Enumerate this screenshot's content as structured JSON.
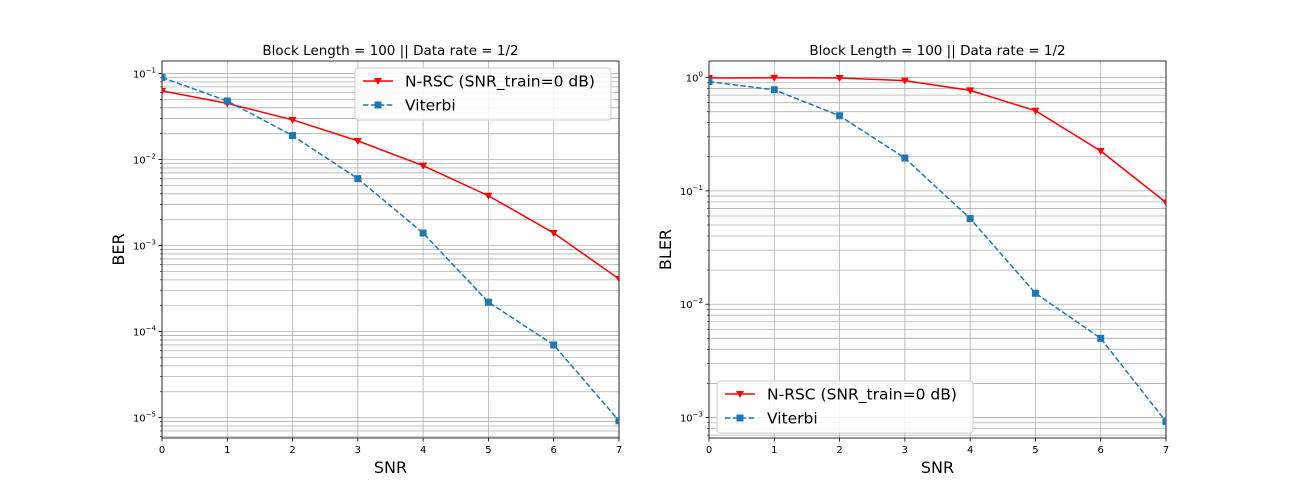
{
  "chart_data": [
    {
      "type": "line",
      "title": "Block Length = 100 || Data rate = 1/2",
      "xlabel": "SNR",
      "ylabel": "BER",
      "xlim": [
        0,
        7
      ],
      "ylim": [
        5.8e-06,
        0.14
      ],
      "yscale": "log",
      "grid": true,
      "legend_position": "top-right",
      "x": [
        0,
        1,
        2,
        3,
        4,
        5,
        6,
        7
      ],
      "x_tick_labels": [
        "0",
        "1",
        "2",
        "3",
        "4",
        "5",
        "6",
        "7"
      ],
      "y_tick_labels": [
        {
          "base": "10",
          "exp": "−5"
        },
        {
          "base": "10",
          "exp": "−4"
        },
        {
          "base": "10",
          "exp": "−3"
        },
        {
          "base": "10",
          "exp": "−2"
        },
        {
          "base": "10",
          "exp": "−1"
        }
      ],
      "series": [
        {
          "name": "N-RSC (SNR_train=0 dB)",
          "color": "#ff0000",
          "marker": "triangle-down",
          "linestyle": "solid",
          "values": [
            0.063,
            0.045,
            0.029,
            0.0165,
            0.0085,
            0.0038,
            0.0014,
            0.00041
          ]
        },
        {
          "name": "Viterbi",
          "color": "#1f77b4",
          "marker": "square",
          "linestyle": "dashed",
          "values": [
            0.09,
            0.048,
            0.019,
            0.006,
            0.0014,
            0.00022,
            7e-05,
            9.2e-06
          ]
        }
      ]
    },
    {
      "type": "line",
      "title": "Block Length = 100 || Data rate = 1/2",
      "xlabel": "SNR",
      "ylabel": "BLER",
      "xlim": [
        0,
        7
      ],
      "ylim": [
        0.00066,
        1.4
      ],
      "yscale": "log",
      "grid": true,
      "legend_position": "bottom-left",
      "x": [
        0,
        1,
        2,
        3,
        4,
        5,
        6,
        7
      ],
      "x_tick_labels": [
        "0",
        "1",
        "2",
        "3",
        "4",
        "5",
        "6",
        "7"
      ],
      "y_tick_labels": [
        {
          "base": "10",
          "exp": "−3"
        },
        {
          "base": "10",
          "exp": "−2"
        },
        {
          "base": "10",
          "exp": "−1"
        },
        {
          "base": "10",
          "exp": "0"
        }
      ],
      "series": [
        {
          "name": "N-RSC (SNR_train=0 dB)",
          "color": "#ff0000",
          "marker": "triangle-down",
          "linestyle": "solid",
          "values": [
            0.99,
            0.995,
            0.99,
            0.94,
            0.77,
            0.51,
            0.225,
            0.079
          ]
        },
        {
          "name": "Viterbi",
          "color": "#1f77b4",
          "marker": "square",
          "linestyle": "dashed",
          "values": [
            0.92,
            0.78,
            0.46,
            0.195,
            0.057,
            0.0125,
            0.005,
            0.00092
          ]
        }
      ]
    }
  ]
}
